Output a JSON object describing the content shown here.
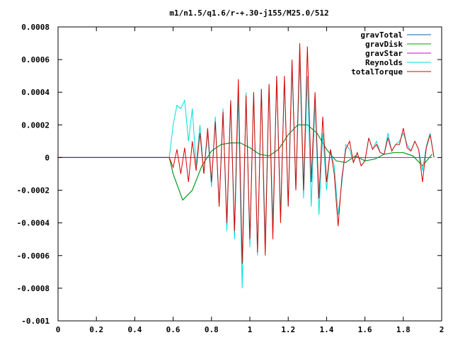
{
  "chart_data": {
    "type": "line",
    "title": "m1/n1.5/q1.6/r-+.30-j155/M25.0/512",
    "xlabel": "",
    "ylabel": "",
    "xlim": [
      0,
      2
    ],
    "ylim": [
      -0.001,
      0.0008
    ],
    "x_ticks": [
      "0",
      "0.2",
      "0.4",
      "0.6",
      "0.8",
      "1",
      "1.2",
      "1.4",
      "1.6",
      "1.8",
      "2"
    ],
    "x_tick_values": [
      0,
      0.2,
      0.4,
      0.6,
      0.8,
      1.0,
      1.2,
      1.4,
      1.6,
      1.8,
      2.0
    ],
    "y_ticks": [
      "0.0008",
      "0.0006",
      "0.0004",
      "0.0002",
      "0",
      "-0.0002",
      "-0.0004",
      "-0.0006",
      "-0.0008",
      "-0.001"
    ],
    "y_tick_values": [
      0.0008,
      0.0006,
      0.0004,
      0.0002,
      0,
      -0.0002,
      -0.0004,
      -0.0006,
      -0.0008,
      -0.001
    ],
    "grid": false,
    "legend_position": "top-right",
    "series": [
      {
        "name": "gravTotal",
        "color": "#0060ad",
        "x": [
          0,
          0.58,
          0.6,
          0.65,
          0.7,
          0.75,
          0.8,
          0.85,
          0.9,
          0.95,
          1.0,
          1.05,
          1.1,
          1.15,
          1.2,
          1.25,
          1.3,
          1.35,
          1.4,
          1.45,
          1.5,
          1.55,
          1.6,
          1.65,
          1.7,
          1.75,
          1.8,
          1.85,
          1.9,
          1.95
        ],
        "y": [
          0,
          0,
          -0.0001,
          -0.00026,
          -0.0002,
          -5e-05,
          4e-05,
          8e-05,
          9e-05,
          9e-05,
          6e-05,
          2e-05,
          1e-05,
          5e-05,
          0.00014,
          0.0002,
          0.0002,
          0.00015,
          5e-05,
          -2e-05,
          -3e-05,
          1e-05,
          -2e-05,
          -1e-05,
          2e-05,
          3e-05,
          3e-05,
          1e-05,
          -5e-05,
          2e-05
        ]
      },
      {
        "name": "gravDisk",
        "color": "#009e00",
        "x": [
          0,
          0.58,
          0.6,
          0.65,
          0.7,
          0.75,
          0.8,
          0.85,
          0.9,
          0.95,
          1.0,
          1.05,
          1.1,
          1.15,
          1.2,
          1.25,
          1.3,
          1.35,
          1.4,
          1.45,
          1.5,
          1.55,
          1.6,
          1.65,
          1.7,
          1.75,
          1.8,
          1.85,
          1.9,
          1.95
        ],
        "y": [
          0,
          0,
          -0.0001,
          -0.00026,
          -0.0002,
          -5e-05,
          4e-05,
          8e-05,
          9e-05,
          9e-05,
          6e-05,
          2e-05,
          1e-05,
          5e-05,
          0.00014,
          0.0002,
          0.0002,
          0.00015,
          5e-05,
          -2e-05,
          -3e-05,
          1e-05,
          -2e-05,
          -1e-05,
          2e-05,
          3e-05,
          3e-05,
          1e-05,
          -5e-05,
          2e-05
        ]
      },
      {
        "name": "gravStar",
        "color": "#cc00cc",
        "x": [
          0,
          1.95
        ],
        "y": [
          0,
          0
        ]
      },
      {
        "name": "Reynolds",
        "color": "#00dddd",
        "x": [
          0,
          0.58,
          0.6,
          0.62,
          0.64,
          0.66,
          0.68,
          0.7,
          0.72,
          0.74,
          0.76,
          0.78,
          0.8,
          0.82,
          0.84,
          0.86,
          0.88,
          0.9,
          0.92,
          0.94,
          0.96,
          0.98,
          1.0,
          1.02,
          1.04,
          1.06,
          1.08,
          1.1,
          1.12,
          1.14,
          1.16,
          1.18,
          1.2,
          1.22,
          1.24,
          1.26,
          1.28,
          1.3,
          1.32,
          1.34,
          1.36,
          1.38,
          1.4,
          1.42,
          1.44,
          1.46,
          1.48,
          1.5,
          1.52,
          1.54,
          1.56,
          1.58,
          1.6,
          1.62,
          1.64,
          1.66,
          1.68,
          1.7,
          1.72,
          1.74,
          1.76,
          1.78,
          1.8,
          1.82,
          1.84,
          1.86,
          1.88,
          1.9,
          1.92,
          1.94,
          1.96
        ],
        "y": [
          0,
          0,
          0.0002,
          0.00032,
          0.0003,
          0.00035,
          0.0001,
          0.0003,
          -5e-05,
          0.0002,
          -0.0001,
          0.00015,
          -0.00018,
          0.00025,
          -0.0003,
          0.0003,
          -0.00045,
          0.00035,
          -0.0005,
          0.00038,
          -0.0008,
          0.0004,
          -0.00055,
          0.0004,
          -0.0006,
          0.00042,
          -0.0005,
          0.00045,
          -0.0004,
          0.0005,
          -0.00035,
          0.00048,
          -0.0003,
          0.00055,
          -0.0002,
          0.0006,
          -0.00025,
          0.0005,
          -0.0003,
          0.00035,
          -0.00035,
          0.00015,
          -0.0002,
          5e-05,
          -5e-05,
          -0.00035,
          -0.00015,
          8e-05,
          5e-05,
          -3e-05,
          3e-05,
          -5e-05,
          -2e-05,
          0.00012,
          5e-05,
          0.0001,
          3e-05,
          2e-05,
          0.00015,
          4e-05,
          8e-05,
          0.0001,
          0.00015,
          8e-05,
          4e-05,
          0.0001,
          5e-05,
          -8e-05,
          7e-05,
          0.00015,
          0
        ]
      },
      {
        "name": "totalTorque",
        "color": "#dd0000",
        "x": [
          0,
          0.58,
          0.6,
          0.62,
          0.64,
          0.66,
          0.68,
          0.7,
          0.72,
          0.74,
          0.76,
          0.78,
          0.8,
          0.82,
          0.84,
          0.86,
          0.88,
          0.9,
          0.92,
          0.94,
          0.96,
          0.98,
          1.0,
          1.02,
          1.04,
          1.06,
          1.08,
          1.1,
          1.12,
          1.14,
          1.16,
          1.18,
          1.2,
          1.22,
          1.24,
          1.26,
          1.28,
          1.3,
          1.32,
          1.34,
          1.36,
          1.38,
          1.4,
          1.42,
          1.44,
          1.46,
          1.48,
          1.5,
          1.52,
          1.54,
          1.56,
          1.58,
          1.6,
          1.62,
          1.64,
          1.66,
          1.68,
          1.7,
          1.72,
          1.74,
          1.76,
          1.78,
          1.8,
          1.82,
          1.84,
          1.86,
          1.88,
          1.9,
          1.92,
          1.94,
          1.96
        ],
        "y": [
          0,
          0,
          -6e-05,
          5e-05,
          -0.0001,
          6e-05,
          -0.00015,
          0.0001,
          -8e-05,
          0.00015,
          -0.0001,
          0.00018,
          -0.00015,
          0.00022,
          -0.0003,
          0.00028,
          -0.0004,
          0.00035,
          -0.00045,
          0.00048,
          -0.00065,
          0.00038,
          -0.0005,
          0.0004,
          -0.00058,
          0.00042,
          -0.0006,
          0.00045,
          -0.0005,
          0.0005,
          -0.0004,
          0.0005,
          -0.0003,
          0.0006,
          -0.0002,
          0.0007,
          -0.0002,
          0.00068,
          -0.00015,
          0.0004,
          -0.00025,
          0.00025,
          -0.00015,
          5e-05,
          -0.0001,
          -0.00042,
          -0.00012,
          5e-05,
          0.0001,
          -3e-05,
          3e-05,
          -5e-05,
          -2e-05,
          0.00012,
          5e-05,
          8e-05,
          3e-05,
          2e-05,
          0.00012,
          4e-05,
          8e-05,
          8e-05,
          0.00018,
          6e-05,
          4e-05,
          0.0001,
          5e-05,
          -0.00015,
          6e-05,
          0.00014,
          0
        ]
      }
    ]
  }
}
